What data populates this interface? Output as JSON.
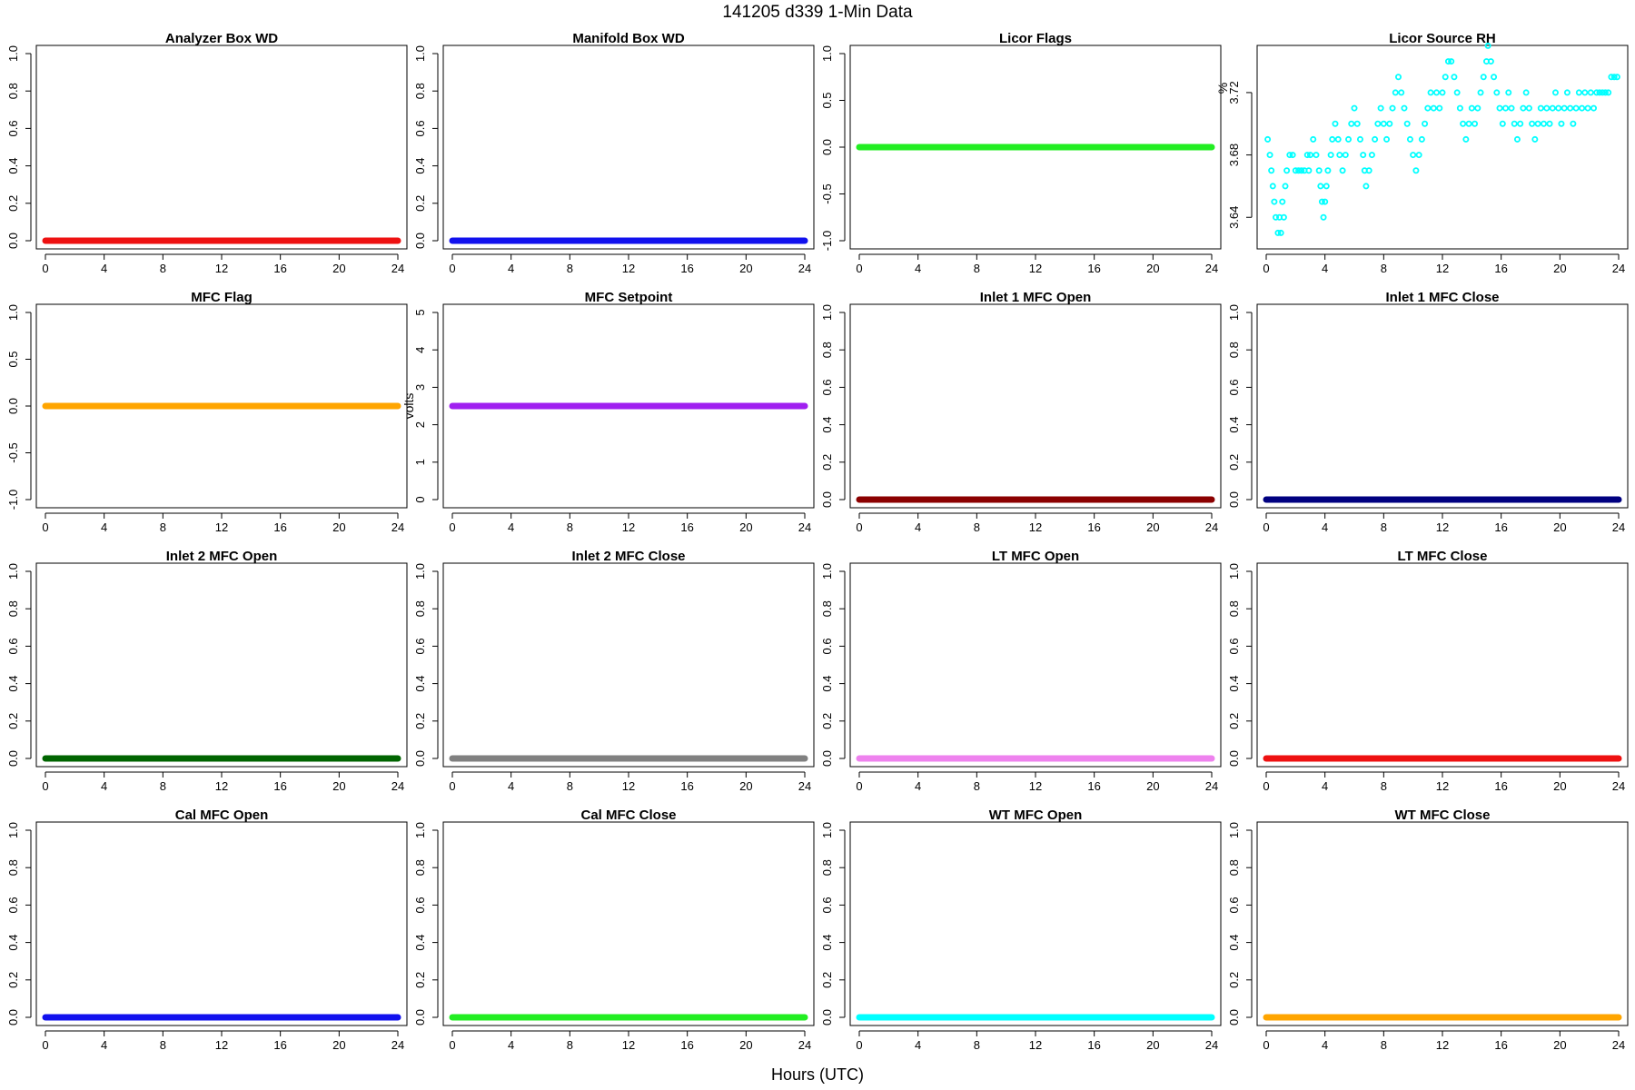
{
  "page_title": "141205   d339   1-Min Data",
  "x_axis_label": "Hours (UTC)",
  "chart_data": [
    {
      "type": "line",
      "title": "Analyzer Box WD",
      "ylabel": "",
      "xlim": [
        0,
        24
      ],
      "ylim": [
        0,
        1
      ],
      "xticks": [
        "0",
        "4",
        "8",
        "12",
        "16",
        "20",
        "24"
      ],
      "yticks": [
        "0.0",
        "0.2",
        "0.4",
        "0.6",
        "0.8",
        "1.0"
      ],
      "series": [
        {
          "color": "#ee1111",
          "x": [
            0,
            24
          ],
          "y": [
            0,
            0
          ]
        }
      ]
    },
    {
      "type": "line",
      "title": "Manifold Box WD",
      "ylabel": "",
      "xlim": [
        0,
        24
      ],
      "ylim": [
        0,
        1
      ],
      "xticks": [
        "0",
        "4",
        "8",
        "12",
        "16",
        "20",
        "24"
      ],
      "yticks": [
        "0.0",
        "0.2",
        "0.4",
        "0.6",
        "0.8",
        "1.0"
      ],
      "series": [
        {
          "color": "#1111ee",
          "x": [
            0,
            24
          ],
          "y": [
            0,
            0
          ]
        }
      ]
    },
    {
      "type": "line",
      "title": "Licor Flags",
      "ylabel": "",
      "xlim": [
        0,
        24
      ],
      "ylim": [
        -1,
        1
      ],
      "xticks": [
        "0",
        "4",
        "8",
        "12",
        "16",
        "20",
        "24"
      ],
      "yticks": [
        "-1.0",
        "-0.5",
        "0.0",
        "0.5",
        "1.0"
      ],
      "series": [
        {
          "color": "#22ee22",
          "x": [
            0,
            24
          ],
          "y": [
            0,
            0
          ]
        }
      ]
    },
    {
      "type": "scatter",
      "title": "Licor Source RH",
      "ylabel": "%",
      "xlim": [
        0,
        24
      ],
      "ylim": [
        3.625,
        3.745
      ],
      "xticks": [
        "0",
        "4",
        "8",
        "12",
        "16",
        "20",
        "24"
      ],
      "yticks": [
        "3.64",
        "3.68",
        "3.72"
      ],
      "series": [
        {
          "color": "#00ffff",
          "points": [
            [
              0.1,
              3.69
            ],
            [
              0.25,
              3.68
            ],
            [
              0.35,
              3.67
            ],
            [
              0.45,
              3.66
            ],
            [
              0.55,
              3.65
            ],
            [
              0.65,
              3.64
            ],
            [
              0.8,
              3.63
            ],
            [
              0.9,
              3.64
            ],
            [
              1.0,
              3.63
            ],
            [
              1.1,
              3.65
            ],
            [
              1.2,
              3.64
            ],
            [
              1.3,
              3.66
            ],
            [
              1.4,
              3.67
            ],
            [
              1.6,
              3.68
            ],
            [
              1.8,
              3.68
            ],
            [
              2.0,
              3.67
            ],
            [
              2.2,
              3.67
            ],
            [
              2.4,
              3.67
            ],
            [
              2.6,
              3.67
            ],
            [
              2.8,
              3.68
            ],
            [
              2.9,
              3.67
            ],
            [
              3.0,
              3.68
            ],
            [
              3.2,
              3.69
            ],
            [
              3.4,
              3.68
            ],
            [
              3.6,
              3.67
            ],
            [
              3.7,
              3.66
            ],
            [
              3.8,
              3.65
            ],
            [
              3.9,
              3.64
            ],
            [
              4.0,
              3.65
            ],
            [
              4.1,
              3.66
            ],
            [
              4.2,
              3.67
            ],
            [
              4.4,
              3.68
            ],
            [
              4.5,
              3.69
            ],
            [
              4.7,
              3.7
            ],
            [
              4.9,
              3.69
            ],
            [
              5.0,
              3.68
            ],
            [
              5.2,
              3.67
            ],
            [
              5.4,
              3.68
            ],
            [
              5.6,
              3.69
            ],
            [
              5.8,
              3.7
            ],
            [
              6.0,
              3.71
            ],
            [
              6.2,
              3.7
            ],
            [
              6.4,
              3.69
            ],
            [
              6.6,
              3.68
            ],
            [
              6.7,
              3.67
            ],
            [
              6.8,
              3.66
            ],
            [
              7.0,
              3.67
            ],
            [
              7.2,
              3.68
            ],
            [
              7.4,
              3.69
            ],
            [
              7.6,
              3.7
            ],
            [
              7.8,
              3.71
            ],
            [
              8.0,
              3.7
            ],
            [
              8.2,
              3.69
            ],
            [
              8.4,
              3.7
            ],
            [
              8.6,
              3.71
            ],
            [
              8.8,
              3.72
            ],
            [
              9.0,
              3.73
            ],
            [
              9.2,
              3.72
            ],
            [
              9.4,
              3.71
            ],
            [
              9.6,
              3.7
            ],
            [
              9.8,
              3.69
            ],
            [
              10.0,
              3.68
            ],
            [
              10.2,
              3.67
            ],
            [
              10.4,
              3.68
            ],
            [
              10.6,
              3.69
            ],
            [
              10.8,
              3.7
            ],
            [
              11.0,
              3.71
            ],
            [
              11.2,
              3.72
            ],
            [
              11.4,
              3.71
            ],
            [
              11.6,
              3.72
            ],
            [
              11.8,
              3.71
            ],
            [
              12.0,
              3.72
            ],
            [
              12.2,
              3.73
            ],
            [
              12.4,
              3.74
            ],
            [
              12.6,
              3.74
            ],
            [
              12.8,
              3.73
            ],
            [
              13.0,
              3.72
            ],
            [
              13.2,
              3.71
            ],
            [
              13.4,
              3.7
            ],
            [
              13.6,
              3.69
            ],
            [
              13.8,
              3.7
            ],
            [
              14.0,
              3.71
            ],
            [
              14.2,
              3.7
            ],
            [
              14.4,
              3.71
            ],
            [
              14.6,
              3.72
            ],
            [
              14.8,
              3.73
            ],
            [
              15.0,
              3.74
            ],
            [
              15.1,
              3.75
            ],
            [
              15.3,
              3.74
            ],
            [
              15.5,
              3.73
            ],
            [
              15.7,
              3.72
            ],
            [
              15.9,
              3.71
            ],
            [
              16.1,
              3.7
            ],
            [
              16.3,
              3.71
            ],
            [
              16.5,
              3.72
            ],
            [
              16.7,
              3.71
            ],
            [
              16.9,
              3.7
            ],
            [
              17.1,
              3.69
            ],
            [
              17.3,
              3.7
            ],
            [
              17.5,
              3.71
            ],
            [
              17.7,
              3.72
            ],
            [
              17.9,
              3.71
            ],
            [
              18.1,
              3.7
            ],
            [
              18.3,
              3.69
            ],
            [
              18.5,
              3.7
            ],
            [
              18.7,
              3.71
            ],
            [
              18.9,
              3.7
            ],
            [
              19.1,
              3.71
            ],
            [
              19.3,
              3.7
            ],
            [
              19.5,
              3.71
            ],
            [
              19.7,
              3.72
            ],
            [
              19.9,
              3.71
            ],
            [
              20.1,
              3.7
            ],
            [
              20.3,
              3.71
            ],
            [
              20.5,
              3.72
            ],
            [
              20.7,
              3.71
            ],
            [
              20.9,
              3.7
            ],
            [
              21.1,
              3.71
            ],
            [
              21.3,
              3.72
            ],
            [
              21.5,
              3.71
            ],
            [
              21.7,
              3.72
            ],
            [
              21.9,
              3.71
            ],
            [
              22.1,
              3.72
            ],
            [
              22.3,
              3.71
            ],
            [
              22.5,
              3.72
            ],
            [
              22.7,
              3.72
            ],
            [
              22.9,
              3.72
            ],
            [
              23.1,
              3.72
            ],
            [
              23.3,
              3.72
            ],
            [
              23.5,
              3.73
            ],
            [
              23.7,
              3.73
            ],
            [
              23.9,
              3.73
            ]
          ]
        }
      ]
    },
    {
      "type": "line",
      "title": "MFC Flag",
      "ylabel": "",
      "xlim": [
        0,
        24
      ],
      "ylim": [
        -1,
        1
      ],
      "xticks": [
        "0",
        "4",
        "8",
        "12",
        "16",
        "20",
        "24"
      ],
      "yticks": [
        "-1.0",
        "-0.5",
        "0.0",
        "0.5",
        "1.0"
      ],
      "series": [
        {
          "color": "#ffa500",
          "x": [
            0,
            24
          ],
          "y": [
            0,
            0
          ]
        }
      ]
    },
    {
      "type": "line",
      "title": "MFC Setpoint",
      "ylabel": "volts",
      "xlim": [
        0,
        24
      ],
      "ylim": [
        0,
        5
      ],
      "xticks": [
        "0",
        "4",
        "8",
        "12",
        "16",
        "20",
        "24"
      ],
      "yticks": [
        "0",
        "1",
        "2",
        "3",
        "4",
        "5"
      ],
      "series": [
        {
          "color": "#a020f0",
          "x": [
            0,
            24
          ],
          "y": [
            2.5,
            2.5
          ]
        }
      ]
    },
    {
      "type": "line",
      "title": "Inlet 1 MFC Open",
      "ylabel": "",
      "xlim": [
        0,
        24
      ],
      "ylim": [
        0,
        1
      ],
      "xticks": [
        "0",
        "4",
        "8",
        "12",
        "16",
        "20",
        "24"
      ],
      "yticks": [
        "0.0",
        "0.2",
        "0.4",
        "0.6",
        "0.8",
        "1.0"
      ],
      "series": [
        {
          "color": "#8b0000",
          "x": [
            0,
            24
          ],
          "y": [
            0,
            0
          ]
        }
      ]
    },
    {
      "type": "line",
      "title": "Inlet 1 MFC Close",
      "ylabel": "",
      "xlim": [
        0,
        24
      ],
      "ylim": [
        0,
        1
      ],
      "xticks": [
        "0",
        "4",
        "8",
        "12",
        "16",
        "20",
        "24"
      ],
      "yticks": [
        "0.0",
        "0.2",
        "0.4",
        "0.6",
        "0.8",
        "1.0"
      ],
      "series": [
        {
          "color": "#000080",
          "x": [
            0,
            24
          ],
          "y": [
            0,
            0
          ]
        }
      ]
    },
    {
      "type": "line",
      "title": "Inlet 2 MFC Open",
      "ylabel": "",
      "xlim": [
        0,
        24
      ],
      "ylim": [
        0,
        1
      ],
      "xticks": [
        "0",
        "4",
        "8",
        "12",
        "16",
        "20",
        "24"
      ],
      "yticks": [
        "0.0",
        "0.2",
        "0.4",
        "0.6",
        "0.8",
        "1.0"
      ],
      "series": [
        {
          "color": "#006400",
          "x": [
            0,
            24
          ],
          "y": [
            0,
            0
          ]
        }
      ]
    },
    {
      "type": "line",
      "title": "Inlet 2 MFC Close",
      "ylabel": "",
      "xlim": [
        0,
        24
      ],
      "ylim": [
        0,
        1
      ],
      "xticks": [
        "0",
        "4",
        "8",
        "12",
        "16",
        "20",
        "24"
      ],
      "yticks": [
        "0.0",
        "0.2",
        "0.4",
        "0.6",
        "0.8",
        "1.0"
      ],
      "series": [
        {
          "color": "#808080",
          "x": [
            0,
            24
          ],
          "y": [
            0,
            0
          ]
        }
      ]
    },
    {
      "type": "line",
      "title": "LT MFC Open",
      "ylabel": "",
      "xlim": [
        0,
        24
      ],
      "ylim": [
        0,
        1
      ],
      "xticks": [
        "0",
        "4",
        "8",
        "12",
        "16",
        "20",
        "24"
      ],
      "yticks": [
        "0.0",
        "0.2",
        "0.4",
        "0.6",
        "0.8",
        "1.0"
      ],
      "series": [
        {
          "color": "#ee82ee",
          "x": [
            0,
            24
          ],
          "y": [
            0,
            0
          ]
        }
      ]
    },
    {
      "type": "line",
      "title": "LT MFC Close",
      "ylabel": "",
      "xlim": [
        0,
        24
      ],
      "ylim": [
        0,
        1
      ],
      "xticks": [
        "0",
        "4",
        "8",
        "12",
        "16",
        "20",
        "24"
      ],
      "yticks": [
        "0.0",
        "0.2",
        "0.4",
        "0.6",
        "0.8",
        "1.0"
      ],
      "series": [
        {
          "color": "#ee1111",
          "x": [
            0,
            24
          ],
          "y": [
            0,
            0
          ]
        }
      ]
    },
    {
      "type": "line",
      "title": "Cal MFC Open",
      "ylabel": "",
      "xlim": [
        0,
        24
      ],
      "ylim": [
        0,
        1
      ],
      "xticks": [
        "0",
        "4",
        "8",
        "12",
        "16",
        "20",
        "24"
      ],
      "yticks": [
        "0.0",
        "0.2",
        "0.4",
        "0.6",
        "0.8",
        "1.0"
      ],
      "series": [
        {
          "color": "#1111ee",
          "x": [
            0,
            24
          ],
          "y": [
            0,
            0
          ]
        }
      ]
    },
    {
      "type": "line",
      "title": "Cal MFC Close",
      "ylabel": "",
      "xlim": [
        0,
        24
      ],
      "ylim": [
        0,
        1
      ],
      "xticks": [
        "0",
        "4",
        "8",
        "12",
        "16",
        "20",
        "24"
      ],
      "yticks": [
        "0.0",
        "0.2",
        "0.4",
        "0.6",
        "0.8",
        "1.0"
      ],
      "series": [
        {
          "color": "#22ee22",
          "x": [
            0,
            24
          ],
          "y": [
            0,
            0
          ]
        }
      ]
    },
    {
      "type": "line",
      "title": "WT MFC Open",
      "ylabel": "",
      "xlim": [
        0,
        24
      ],
      "ylim": [
        0,
        1
      ],
      "xticks": [
        "0",
        "4",
        "8",
        "12",
        "16",
        "20",
        "24"
      ],
      "yticks": [
        "0.0",
        "0.2",
        "0.4",
        "0.6",
        "0.8",
        "1.0"
      ],
      "series": [
        {
          "color": "#00ffff",
          "x": [
            0,
            24
          ],
          "y": [
            0,
            0
          ]
        }
      ]
    },
    {
      "type": "line",
      "title": "WT MFC Close",
      "ylabel": "",
      "xlim": [
        0,
        24
      ],
      "ylim": [
        0,
        1
      ],
      "xticks": [
        "0",
        "4",
        "8",
        "12",
        "16",
        "20",
        "24"
      ],
      "yticks": [
        "0.0",
        "0.2",
        "0.4",
        "0.6",
        "0.8",
        "1.0"
      ],
      "series": [
        {
          "color": "#ffa500",
          "x": [
            0,
            24
          ],
          "y": [
            0,
            0
          ]
        }
      ]
    }
  ]
}
